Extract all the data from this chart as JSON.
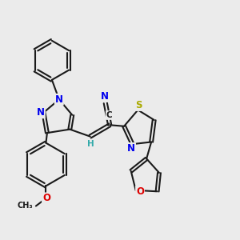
{
  "bg_color": "#ebebeb",
  "bond_color": "#1a1a1a",
  "bond_width": 1.5,
  "dbo": 0.055,
  "atom_colors": {
    "N": "#0000ee",
    "O": "#dd0000",
    "S": "#aaaa00",
    "C": "#1a1a1a",
    "H": "#33aaaa"
  },
  "fs": 8.5
}
